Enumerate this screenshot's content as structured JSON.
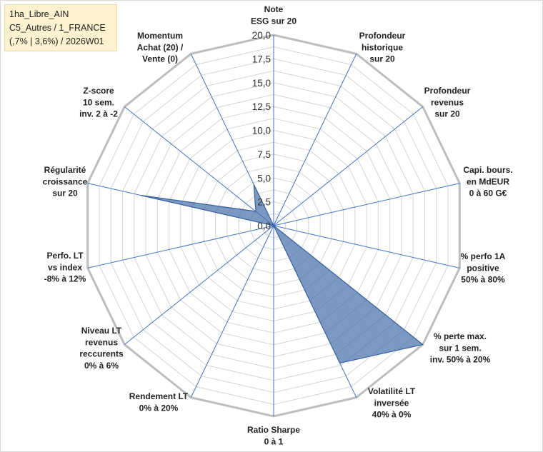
{
  "title_box": {
    "line1": "1ha_Libre_AIN",
    "line2": "C5_Autres / 1_FRANCE",
    "line3": "(,7% | 3,6%) / 2026W01"
  },
  "chart_data": {
    "type": "radar",
    "rlim": [
      0,
      20
    ],
    "ticks": [
      "0,0",
      "2,5",
      "5,0",
      "7,5",
      "10,0",
      "12,5",
      "15,0",
      "17,5",
      "20,0"
    ],
    "grid": true,
    "axes": [
      {
        "label": [
          "Note",
          "ESG sur 20"
        ],
        "value": 0
      },
      {
        "label": [
          "Profondeur",
          "historique",
          "sur 20"
        ],
        "value": 0
      },
      {
        "label": [
          "Profondeur",
          "revenus",
          "sur 20"
        ],
        "value": 0
      },
      {
        "label": [
          "Capi. bours.",
          "en MdEUR",
          "0 à 60 G€"
        ],
        "value": 0
      },
      {
        "label": [
          "% perfo 1A",
          "positive",
          "50% à 80%"
        ],
        "value": 0
      },
      {
        "label": [
          "% perte max.",
          "sur 1 sem.",
          "inv. 50% à 20%"
        ],
        "value": 20
      },
      {
        "label": [
          "Volatilité LT",
          "inversée",
          "40% à 0%"
        ],
        "value": 16
      },
      {
        "label": [
          "Ratio Sharpe",
          "0 à 1"
        ],
        "value": 0
      },
      {
        "label": [
          "Rendement LT",
          "0% à 20%"
        ],
        "value": 0
      },
      {
        "label": [
          "Niveau LT",
          "revenus",
          "reccurents",
          "0% à 6%"
        ],
        "value": 0
      },
      {
        "label": [
          "Perfo. LT",
          "vs index",
          "-8% à 12%"
        ],
        "value": 0
      },
      {
        "label": [
          "Régularité",
          "croissance",
          "sur 20"
        ],
        "value": 14.3
      },
      {
        "label": [
          "Z-score",
          "10 sem.",
          "inv. 2 à -2"
        ],
        "value": 2.4
      },
      {
        "label": [
          "Momentum",
          "Achat (20) /",
          "Vente (0)"
        ],
        "value": 4.8
      }
    ],
    "colors": {
      "fill": "#4a72aa",
      "stroke": "#3a62a0",
      "spoke": "#4472c4",
      "grid": "#d4d4d4",
      "outer": "#bdbdbd"
    }
  }
}
